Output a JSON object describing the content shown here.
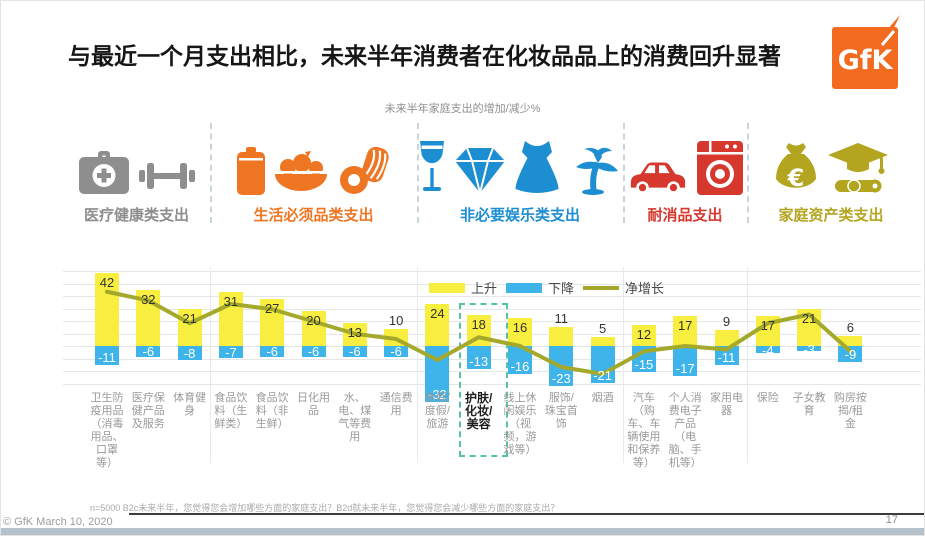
{
  "title": "与最近一个月支出相比，未来半年消费者在化妆品品上的消费回升显著",
  "logo": {
    "text": "GfK",
    "color": "#F26B21"
  },
  "subtitle": "未来半年家庭支出的增加/减少%",
  "category_groups": [
    {
      "label": "医疗健康类支出",
      "color": "#8E8E8E",
      "icons": [
        "first-aid-kit-icon",
        "dumbbell-icon"
      ],
      "columns": 3
    },
    {
      "label": "生活必须品类支出",
      "color": "#EE7623",
      "icons": [
        "canned-food-icon",
        "vegetable-bowl-icon",
        "bacon-and-eggs-icon"
      ],
      "columns": 5
    },
    {
      "label": "非必要娱乐类支出",
      "color": "#1E8ED2",
      "icons": [
        "wine-glass-icon",
        "diamond-icon",
        "dress-icon",
        "palm-tree-icon"
      ],
      "columns": 5
    },
    {
      "label": "耐消品支出",
      "color": "#D6382E",
      "icons": [
        "car-icon",
        "washing-machine-icon"
      ],
      "columns": 3
    },
    {
      "label": "家庭资产类支出",
      "color": "#B3A51F",
      "icons": [
        "money-bag-icon",
        "graduation-diploma-icon"
      ],
      "columns": 3
    }
  ],
  "legend": [
    {
      "label": "上升",
      "swatch": "bar",
      "color": "#F8EE3F"
    },
    {
      "label": "下降",
      "swatch": "bar",
      "color": "#3EB4EA"
    },
    {
      "label": "净增长",
      "swatch": "line",
      "color": "#A4A92B"
    }
  ],
  "chart_data": {
    "type": "bar",
    "title": "未来半年家庭支出的增加/减少%",
    "categories": [
      "卫生防疫用品（消毒用品、口罩等）",
      "医疗保健产品及服务",
      "体育健身",
      "食品饮料（生鲜类）",
      "食品饮料（非生鲜）",
      "日化用品",
      "水、电、煤气等费用",
      "通信费用",
      "休假/度假/旅游",
      "护肤/化妆/美容",
      "线上休闲娱乐（视频，游戏等）",
      "服饰/珠宝首饰",
      "烟酒",
      "汽车（购车、车辆使用和保养等）",
      "个人消费电子产品（电脑、手机等）",
      "家用电器",
      "保险",
      "子女教育",
      "购房按揭/租金"
    ],
    "series": [
      {
        "name": "上升",
        "type": "bar",
        "color": "#F8EE3F",
        "values": [
          42,
          32,
          21,
          31,
          27,
          20,
          13,
          10,
          24,
          18,
          16,
          11,
          5,
          12,
          17,
          9,
          17,
          21,
          6
        ]
      },
      {
        "name": "下降",
        "type": "bar",
        "color": "#3EB4EA",
        "values": [
          -11,
          -6,
          -8,
          -7,
          -6,
          -6,
          -6,
          -6,
          -32,
          -13,
          -16,
          -23,
          -21,
          -15,
          -17,
          -11,
          -4,
          -3,
          -9
        ]
      },
      {
        "name": "净增长",
        "type": "line",
        "color": "#A4A92B",
        "values": [
          31,
          26,
          13,
          24,
          21,
          14,
          7,
          4,
          -8,
          5,
          0,
          -12,
          -16,
          -3,
          0,
          -2,
          13,
          18,
          -3
        ]
      }
    ],
    "highlight": {
      "category": "护肤/化妆/美容",
      "index": 9,
      "box_color": "#58C2A4"
    },
    "ylim": [
      -40,
      45
    ],
    "grid": true,
    "legend_position": "top-center"
  },
  "footer": {
    "note": "n=5000  B2c未来半年，您觉得您会增加哪些方面的家庭支出？B2d就未来半年，您觉得您会减少哪些方面的家庭支出？",
    "copyright": "© GfK March 10, 2020",
    "page_number": "17"
  }
}
